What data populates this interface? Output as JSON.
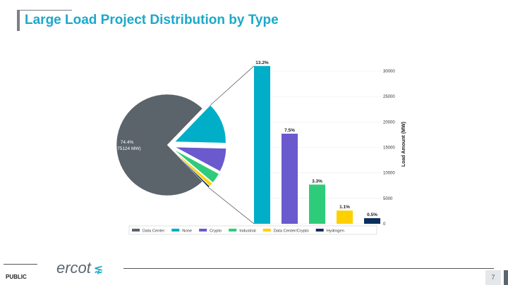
{
  "slide": {
    "title": "Large Load Project Distribution by Type",
    "classification": "PUBLIC",
    "logo_text": "ercot",
    "page_number": "7"
  },
  "chart_data": [
    {
      "type": "pie",
      "categories": [
        "Data Center",
        "None",
        "Crypto",
        "Industrial",
        "Data Center/Crypto",
        "Hydrogen"
      ],
      "percent": [
        74.4,
        13.2,
        7.5,
        3.3,
        1.1,
        0.5
      ],
      "colors": [
        "#5b636b",
        "#00aec7",
        "#6a5acd",
        "#2ecc7a",
        "#ffd000",
        "#0b2f5c"
      ],
      "data_labels": {
        "Data Center": [
          "74.4%",
          "(175124 MW)"
        ]
      },
      "legend": {
        "position": "bottom",
        "entries": [
          "Data Center",
          "None",
          "Crypto",
          "Industrial",
          "Data Center/Crypto",
          "Hydrogen"
        ]
      }
    },
    {
      "type": "bar",
      "categories": [
        "None",
        "Crypto",
        "Industrial",
        "Data Center/Crypto",
        "Hydrogen"
      ],
      "values": [
        31000,
        17700,
        7700,
        2600,
        1100
      ],
      "data_labels": [
        "13.2%",
        "7.5%",
        "3.3%",
        "1.1%",
        "0.5%"
      ],
      "colors": [
        "#00aec7",
        "#6a5acd",
        "#2ecc7a",
        "#ffd000",
        "#0b2f5c"
      ],
      "ylabel": "Load Amount (MW)",
      "ylim": [
        0,
        31000
      ],
      "yticks": [
        0,
        5000,
        10000,
        15000,
        20000,
        25000,
        30000
      ],
      "yaxis_position": "right",
      "grid": true
    }
  ]
}
